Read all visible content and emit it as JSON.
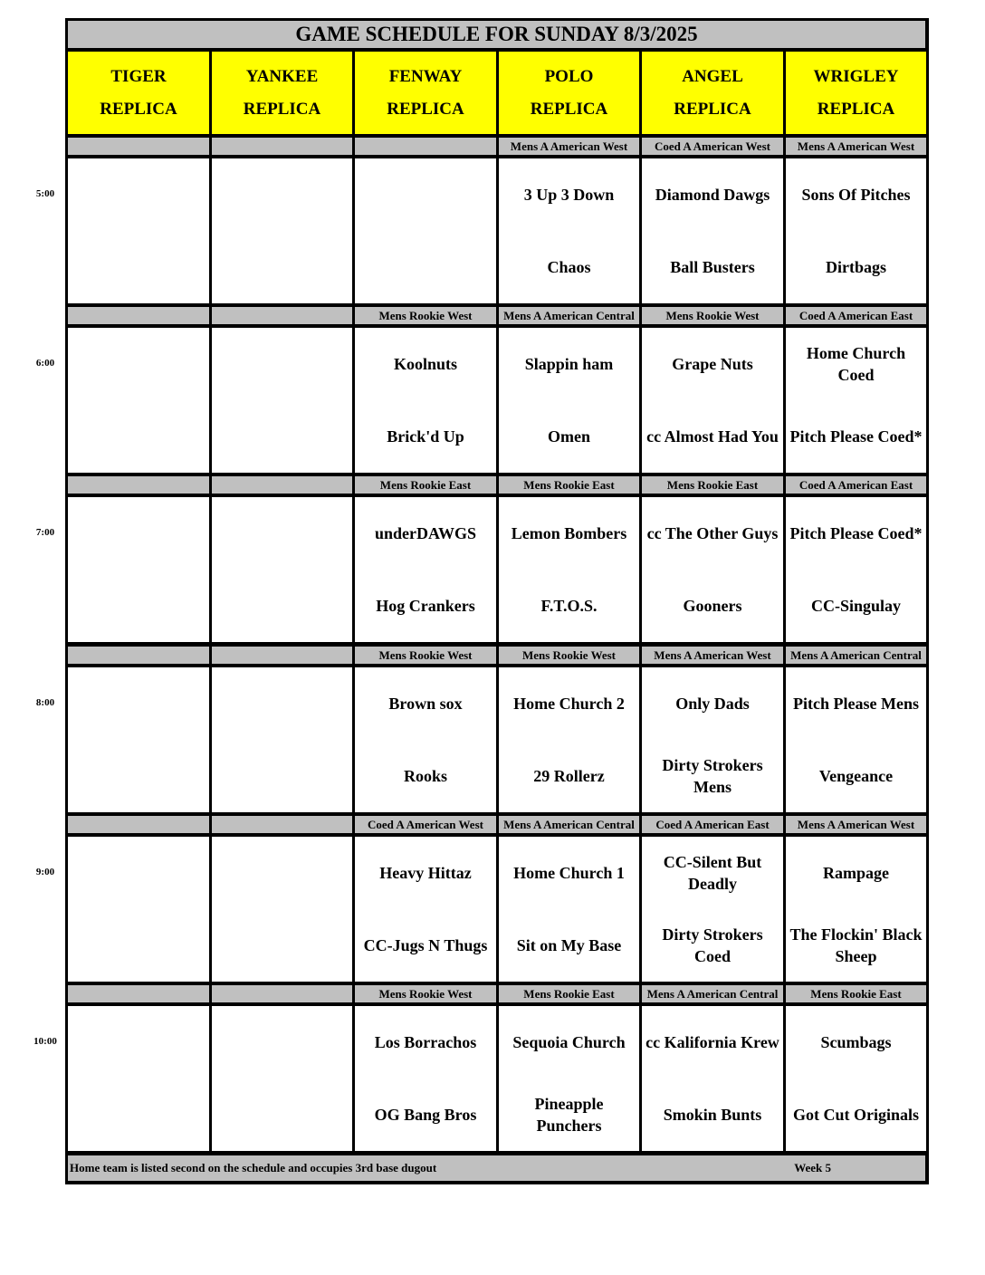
{
  "title": "GAME SCHEDULE FOR SUNDAY 8/3/2025",
  "fields": [
    {
      "name": "TIGER",
      "type": "REPLICA"
    },
    {
      "name": "YANKEE",
      "type": "REPLICA"
    },
    {
      "name": "FENWAY",
      "type": "REPLICA"
    },
    {
      "name": "POLO",
      "type": "REPLICA"
    },
    {
      "name": "ANGEL",
      "type": "REPLICA"
    },
    {
      "name": "WRIGLEY",
      "type": "REPLICA"
    }
  ],
  "slots": [
    {
      "time": "5:00",
      "games": [
        null,
        null,
        null,
        {
          "league": "Mens A American West",
          "away": "3 Up 3 Down",
          "home": "Chaos"
        },
        {
          "league": "Coed A American West",
          "away": "Diamond Dawgs",
          "home": "Ball Busters"
        },
        {
          "league": "Mens A American West",
          "away": "Sons Of Pitches",
          "home": "Dirtbags"
        }
      ]
    },
    {
      "time": "6:00",
      "games": [
        null,
        null,
        {
          "league": "Mens Rookie West",
          "away": "Koolnuts",
          "home": "Brick'd Up"
        },
        {
          "league": "Mens A American Central",
          "away": "Slappin ham",
          "home": "Omen"
        },
        {
          "league": "Mens Rookie West",
          "away": "Grape Nuts",
          "home": "cc Almost Had You"
        },
        {
          "league": "Coed A American East",
          "away": "Home Church Coed",
          "home": "Pitch Please Coed*"
        }
      ]
    },
    {
      "time": "7:00",
      "games": [
        null,
        null,
        {
          "league": "Mens Rookie East",
          "away": "underDAWGS",
          "home": "Hog Crankers"
        },
        {
          "league": "Mens Rookie East",
          "away": "Lemon Bombers",
          "home": "F.T.O.S."
        },
        {
          "league": "Mens Rookie East",
          "away": "cc The Other Guys",
          "home": "Gooners"
        },
        {
          "league": "Coed A American East",
          "away": "Pitch Please Coed*",
          "home": "CC-Singulay"
        }
      ]
    },
    {
      "time": "8:00",
      "games": [
        null,
        null,
        {
          "league": "Mens Rookie West",
          "away": "Brown sox",
          "home": "Rooks"
        },
        {
          "league": "Mens Rookie West",
          "away": "Home Church 2",
          "home": "29 Rollerz"
        },
        {
          "league": "Mens A American West",
          "away": "Only Dads",
          "home": "Dirty Strokers Mens"
        },
        {
          "league": "Mens A American Central",
          "away": "Pitch Please Mens",
          "home": "Vengeance"
        }
      ]
    },
    {
      "time": "9:00",
      "games": [
        null,
        null,
        {
          "league": "Coed A American West",
          "away": "Heavy Hittaz",
          "home": "CC-Jugs N Thugs"
        },
        {
          "league": "Mens A American Central",
          "away": "Home Church 1",
          "home": "Sit on My Base"
        },
        {
          "league": "Coed A American East",
          "away": "CC-Silent But Deadly",
          "home": "Dirty Strokers Coed"
        },
        {
          "league": "Mens A American West",
          "away": "Rampage",
          "home": "The Flockin' Black Sheep"
        }
      ]
    },
    {
      "time": "10:00",
      "games": [
        null,
        null,
        {
          "league": "Mens Rookie West",
          "away": "Los Borrachos",
          "home": "OG Bang Bros"
        },
        {
          "league": "Mens Rookie East",
          "away": "Sequoia Church",
          "home": "Pineapple Punchers"
        },
        {
          "league": "Mens A American Central",
          "away": "cc Kalifornia Krew",
          "home": "Smokin Bunts"
        },
        {
          "league": "Mens Rookie East",
          "away": "Scumbags",
          "home": "Got Cut Originals"
        }
      ]
    }
  ],
  "footer": {
    "note": "Home team is listed second on the schedule and occupies 3rd base dugout",
    "week": "Week 5"
  },
  "colors": {
    "header": "#ffff00",
    "league_bar": "#c0c0c0",
    "border": "#000000"
  }
}
